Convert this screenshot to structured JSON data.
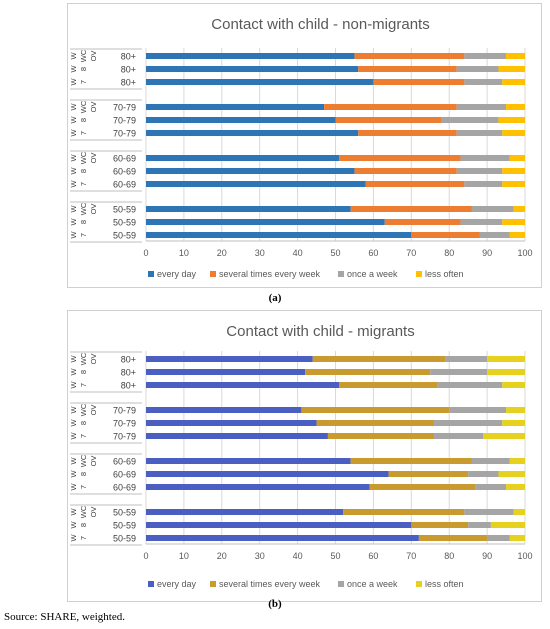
{
  "source_note": "Source: SHARE, weighted.",
  "chart_data": [
    {
      "type": "bar",
      "orientation": "horizontal",
      "stacked": true,
      "caption": "(a)",
      "title": "Contact with child - non-migrants",
      "xlim": [
        0,
        100
      ],
      "xticks": [
        "0",
        "10",
        "20",
        "30",
        "40",
        "50",
        "60",
        "70",
        "80",
        "90",
        "100"
      ],
      "grid": true,
      "legend_position": "bottom",
      "groups": [
        {
          "wave_labels": [
            "W",
            "W",
            "W"
          ],
          "wave_numbers": [
            "WC",
            "8",
            "7"
          ],
          "sub_labels": [
            "OV",
            "",
            ""
          ],
          "age": "80+",
          "rows": [
            [
              55,
              29,
              11,
              5
            ],
            [
              56,
              26,
              11,
              7
            ],
            [
              60,
              24,
              10,
              6
            ]
          ]
        },
        {
          "wave_labels": [
            "W",
            "W",
            "W"
          ],
          "wave_numbers": [
            "WC",
            "8",
            "7"
          ],
          "sub_labels": [
            "OV",
            "",
            ""
          ],
          "age": "70-79",
          "rows": [
            [
              47,
              35,
              13,
              5
            ],
            [
              50,
              28,
              15,
              7
            ],
            [
              56,
              26,
              12,
              6
            ]
          ]
        },
        {
          "wave_labels": [
            "W",
            "W",
            "W"
          ],
          "wave_numbers": [
            "WC",
            "8",
            "7"
          ],
          "sub_labels": [
            "OV",
            "",
            ""
          ],
          "age": "60-69",
          "rows": [
            [
              51,
              32,
              13,
              4
            ],
            [
              55,
              27,
              12,
              6
            ],
            [
              58,
              26,
              10,
              6
            ]
          ]
        },
        {
          "wave_labels": [
            "W",
            "W",
            "W"
          ],
          "wave_numbers": [
            "WC",
            "8",
            "7"
          ],
          "sub_labels": [
            "OV",
            "",
            ""
          ],
          "age": "50-59",
          "rows": [
            [
              54,
              32,
              11,
              3
            ],
            [
              63,
              20,
              11,
              6
            ],
            [
              70,
              18,
              8,
              4
            ]
          ]
        }
      ],
      "series": [
        {
          "name": "every day",
          "color": "#2e75b6"
        },
        {
          "name": "several times every week",
          "color": "#ed7d31"
        },
        {
          "name": "once a week",
          "color": "#a5a5a5"
        },
        {
          "name": "less often",
          "color": "#ffc000"
        }
      ]
    },
    {
      "type": "bar",
      "orientation": "horizontal",
      "stacked": true,
      "caption": "(b)",
      "title": "Contact with child - migrants",
      "xlim": [
        0,
        100
      ],
      "xticks": [
        "0",
        "10",
        "20",
        "30",
        "40",
        "50",
        "60",
        "70",
        "80",
        "90",
        "100"
      ],
      "grid": true,
      "legend_position": "bottom",
      "groups": [
        {
          "wave_labels": [
            "W",
            "W",
            "W"
          ],
          "wave_numbers": [
            "WC",
            "8",
            "7"
          ],
          "sub_labels": [
            "OV",
            "",
            ""
          ],
          "age": "80+",
          "rows": [
            [
              44,
              35,
              11,
              10
            ],
            [
              42,
              33,
              15,
              10
            ],
            [
              51,
              26,
              17,
              6
            ]
          ]
        },
        {
          "wave_labels": [
            "W",
            "W",
            "W"
          ],
          "wave_numbers": [
            "WC",
            "8",
            "7"
          ],
          "sub_labels": [
            "OV",
            "",
            ""
          ],
          "age": "70-79",
          "rows": [
            [
              41,
              39,
              15,
              5
            ],
            [
              45,
              31,
              18,
              6
            ],
            [
              48,
              28,
              13,
              11
            ]
          ]
        },
        {
          "wave_labels": [
            "W",
            "W",
            "W"
          ],
          "wave_numbers": [
            "WC",
            "8",
            "7"
          ],
          "sub_labels": [
            "OV",
            "",
            ""
          ],
          "age": "60-69",
          "rows": [
            [
              54,
              32,
              10,
              4
            ],
            [
              64,
              21,
              8,
              7
            ],
            [
              59,
              28,
              8,
              5
            ]
          ]
        },
        {
          "wave_labels": [
            "W",
            "W",
            "W"
          ],
          "wave_numbers": [
            "WC",
            "8",
            "7"
          ],
          "sub_labels": [
            "OV",
            "",
            ""
          ],
          "age": "50-59",
          "rows": [
            [
              52,
              32,
              13,
              3
            ],
            [
              70,
              15,
              6,
              9
            ],
            [
              72,
              18,
              6,
              4
            ]
          ]
        }
      ],
      "series": [
        {
          "name": "every day",
          "color": "#4a5fc1"
        },
        {
          "name": "several times every week",
          "color": "#c99a2e"
        },
        {
          "name": "once a week",
          "color": "#a5a5a5"
        },
        {
          "name": "less often",
          "color": "#e6d21e"
        }
      ]
    }
  ]
}
